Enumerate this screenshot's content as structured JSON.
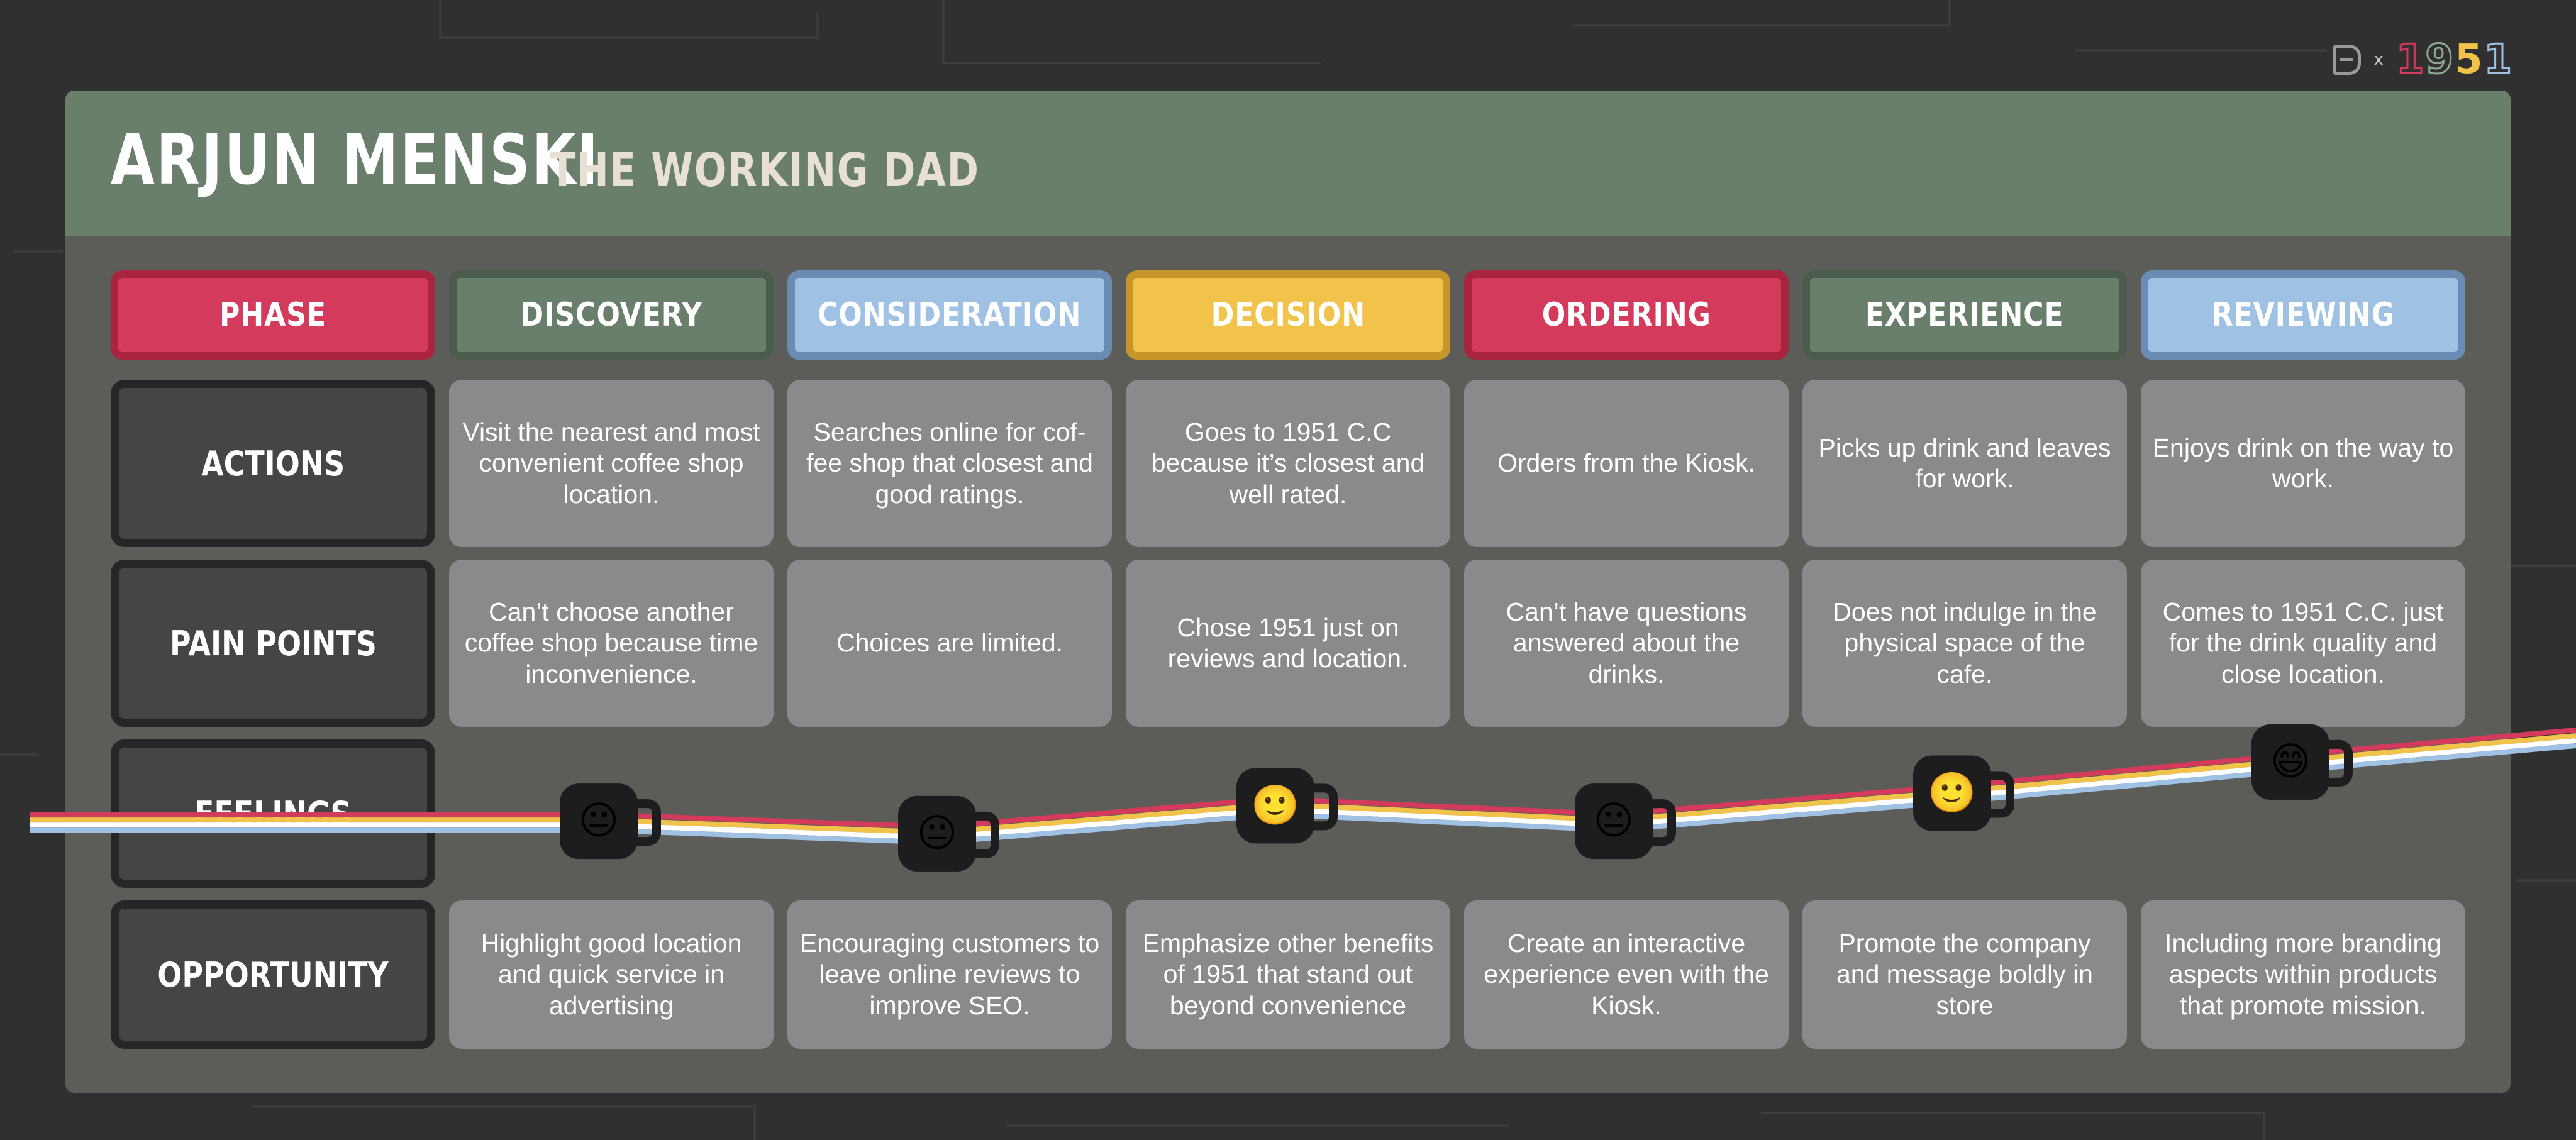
{
  "brand": {
    "logo_text": "1951",
    "separator": "x",
    "colors": {
      "red": "#d43a5b",
      "green": "#6a7e6c",
      "yellow": "#f1c34a",
      "blue": "#9fc1e3"
    }
  },
  "persona": {
    "name": "ARJUN MENSKI",
    "role": "THE WORKING DAD"
  },
  "phase_label": "PHASE",
  "phases": [
    {
      "label": "DISCOVERY",
      "color": "green"
    },
    {
      "label": "CONSIDERATION",
      "color": "blue"
    },
    {
      "label": "DECISION",
      "color": "yellow"
    },
    {
      "label": "ORDERING",
      "color": "red"
    },
    {
      "label": "EXPERIENCE",
      "color": "green"
    },
    {
      "label": "REVIEWING",
      "color": "blue"
    }
  ],
  "row_labels": {
    "actions": "ACTIONS",
    "pain_points": "PAIN POINTS",
    "feelings": "FEELINGS",
    "opportunity": "OPPORTUNITY"
  },
  "actions": [
    "Visit the nearest and most convenient coffee shop location.",
    "Searches online for cof-fee shop that closest and good ratings.",
    "Goes to 1951 C.C because it’s closest and well rated.",
    "Orders from the Kiosk.",
    "Picks up drink and leaves for work.",
    "Enjoys drink on the way to work."
  ],
  "pain_points": [
    "Can’t choose another coffee shop because time inconvenience.",
    "Choices are limited.",
    "Chose 1951 just on reviews and location.",
    "Can’t have questions answered about the drinks.",
    "Does not indulge in the physical space of the cafe.",
    "Comes to 1951 C.C. just for the drink quality and close location."
  ],
  "feelings": [
    {
      "emoji": "😐",
      "level": 0.5
    },
    {
      "emoji": "😐",
      "level": 0.42
    },
    {
      "emoji": "🙂",
      "level": 0.6
    },
    {
      "emoji": "😐",
      "level": 0.5
    },
    {
      "emoji": "🙂",
      "level": 0.68
    },
    {
      "emoji": "😄",
      "level": 0.88
    }
  ],
  "opportunity": [
    "Highlight good location and quick service in advertising",
    "Encouraging customers to leave online reviews to improve SEO.",
    "Emphasize other benefits of 1951 that stand out beyond convenience",
    "Create an interactive experience even with the Kiosk.",
    "Promote the company and message boldly in store",
    "Including more branding aspects within products that promote mission."
  ]
}
